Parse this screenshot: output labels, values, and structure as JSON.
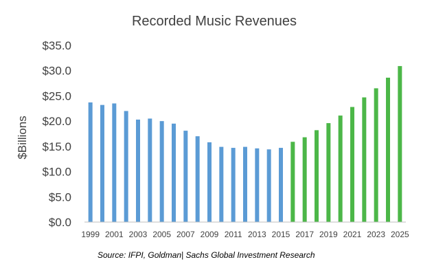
{
  "chart_data": {
    "type": "bar",
    "title": "Recorded Music Revenues",
    "ylabel": "$Billions",
    "xlabel": "",
    "ylim": [
      0,
      35
    ],
    "yticks": [
      "$0.0",
      "$5.0",
      "$10.0",
      "$15.0",
      "$20.0",
      "$25.0",
      "$30.0",
      "$35.0"
    ],
    "categories": [
      "1999",
      "2000",
      "2001",
      "2002",
      "2003",
      "2004",
      "2005",
      "2006",
      "2007",
      "2008",
      "2009",
      "2010",
      "2011",
      "2012",
      "2013",
      "2014",
      "2015",
      "2016",
      "2017",
      "2018",
      "2019",
      "2020",
      "2021",
      "2022",
      "2023",
      "2024",
      "2025"
    ],
    "xtick_labels": [
      "1999",
      "2001",
      "2003",
      "2005",
      "2007",
      "2009",
      "2011",
      "2013",
      "2015",
      "2017",
      "2019",
      "2021",
      "2023",
      "2025"
    ],
    "series": [
      {
        "values": [
          23.7,
          23.2,
          23.5,
          22.0,
          20.3,
          20.5,
          20.0,
          19.5,
          18.1,
          17.0,
          15.8,
          14.9,
          14.7,
          14.9,
          14.6,
          14.4,
          14.7,
          null,
          null,
          null,
          null,
          null,
          null,
          null,
          null,
          null,
          null
        ],
        "color": "#5b9bd5"
      },
      {
        "values": [
          null,
          null,
          null,
          null,
          null,
          null,
          null,
          null,
          null,
          null,
          null,
          null,
          null,
          null,
          null,
          null,
          null,
          15.9,
          16.8,
          18.2,
          19.6,
          21.1,
          22.8,
          24.7,
          26.5,
          28.6,
          30.9
        ],
        "color": "#4cb748"
      }
    ],
    "grid": false,
    "legend": "none"
  },
  "source": "Source: IFPI, Goldman| Sachs Global Investment Research"
}
